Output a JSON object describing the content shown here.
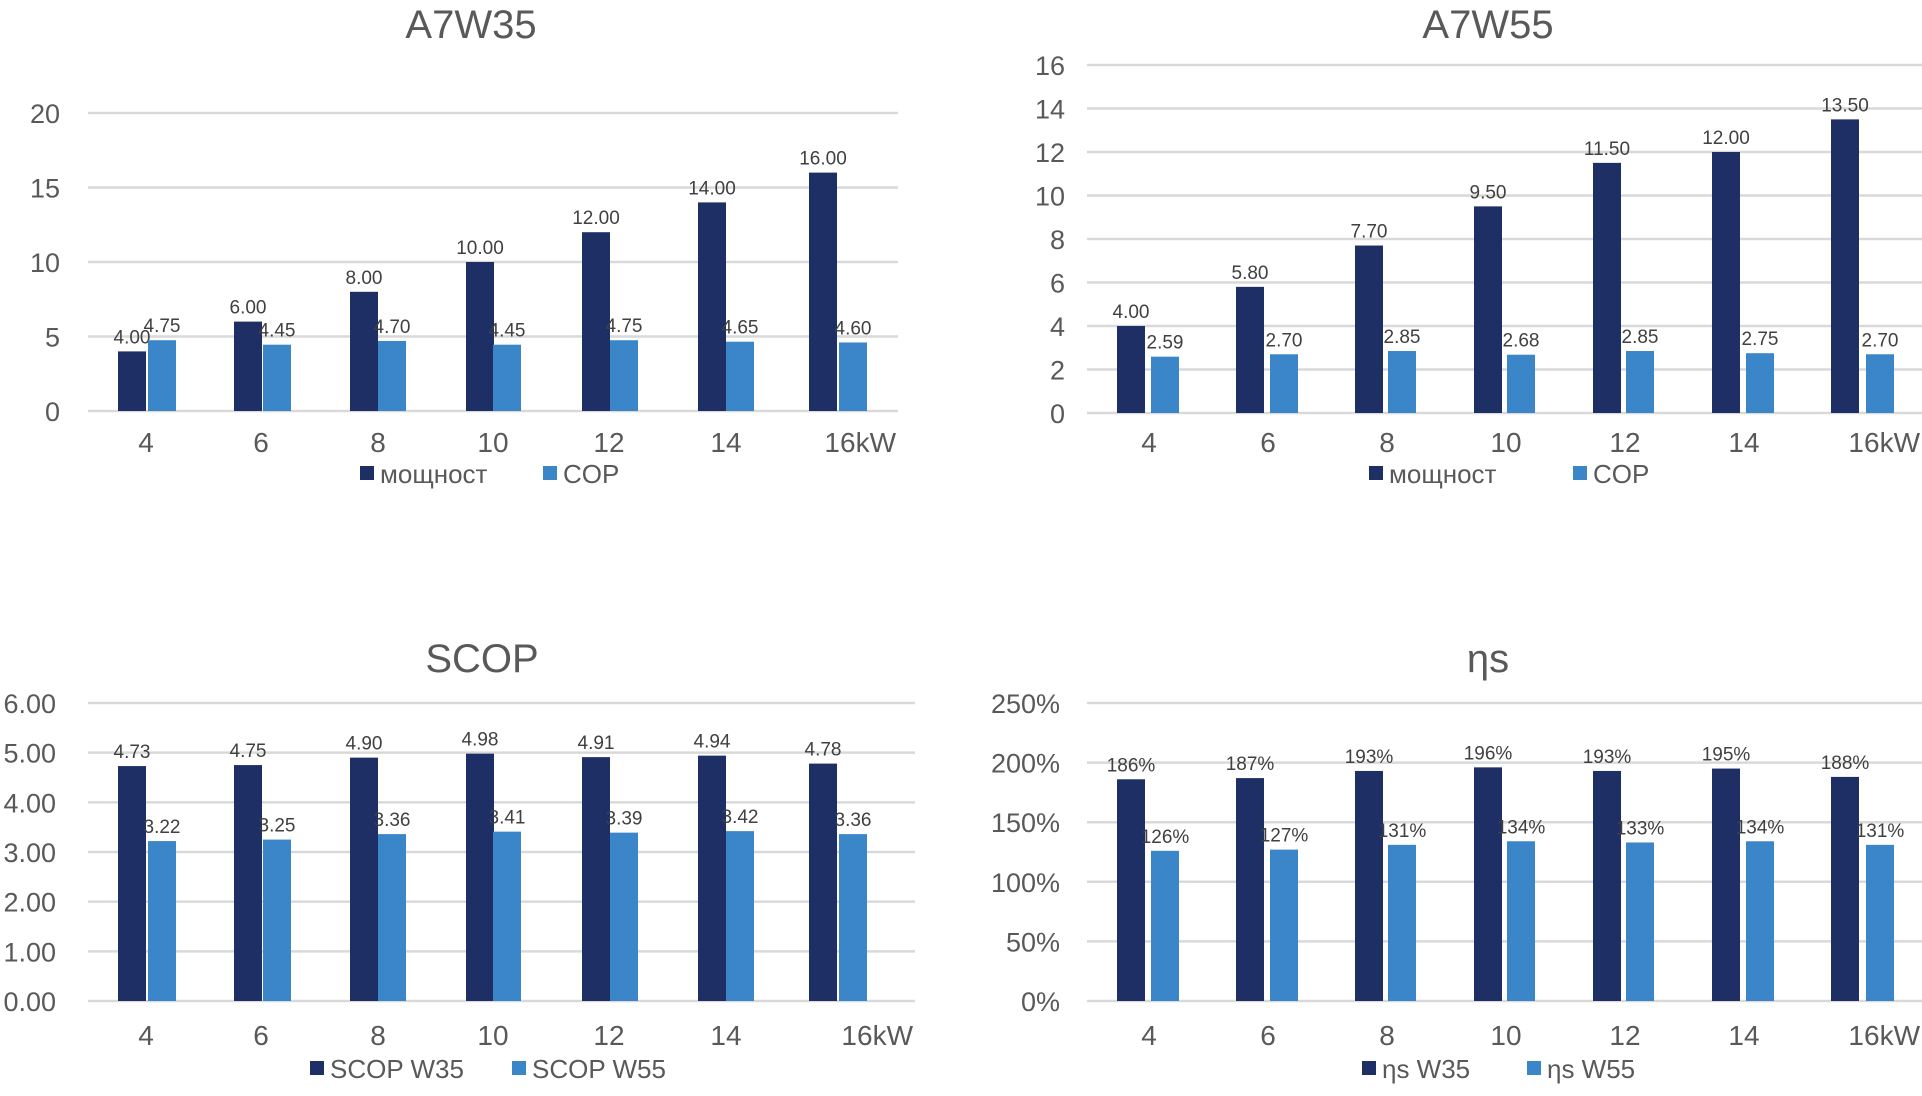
{
  "colors": {
    "series1": "#1e2f66",
    "series2": "#3a86c8",
    "grid": "#d9d9d9",
    "text": "#595959"
  },
  "chart_data": [
    {
      "id": "a7w35",
      "type": "bar",
      "title": "A7W35",
      "categories": [
        "4",
        "6",
        "8",
        "10",
        "12",
        "14",
        "16kW"
      ],
      "ylim": [
        0,
        20
      ],
      "yticks": [
        0,
        5,
        10,
        15,
        20
      ],
      "ytick_labels": [
        "0",
        "5",
        "10",
        "15",
        "20"
      ],
      "grid": true,
      "legend": "bottom",
      "series": [
        {
          "name": "мощност",
          "values": [
            4.0,
            6.0,
            8.0,
            10.0,
            12.0,
            14.0,
            16.0
          ],
          "labels": [
            "4.00",
            "6.00",
            "8.00",
            "10.00",
            "12.00",
            "14.00",
            "16.00"
          ]
        },
        {
          "name": "COP",
          "values": [
            4.75,
            4.45,
            4.7,
            4.45,
            4.75,
            4.65,
            4.6
          ],
          "labels": [
            "4.75",
            "4.45",
            "4.70",
            "4.45",
            "4.75",
            "4.65",
            "4.60"
          ]
        }
      ]
    },
    {
      "id": "a7w55",
      "type": "bar",
      "title": "A7W55",
      "categories": [
        "4",
        "6",
        "8",
        "10",
        "12",
        "14",
        "16kW"
      ],
      "ylim": [
        0,
        16
      ],
      "yticks": [
        0,
        2,
        4,
        6,
        8,
        10,
        12,
        14,
        16
      ],
      "ytick_labels": [
        "0",
        "2",
        "4",
        "6",
        "8",
        "10",
        "12",
        "14",
        "16"
      ],
      "grid": true,
      "legend": "bottom",
      "series": [
        {
          "name": "мощност",
          "values": [
            4.0,
            5.8,
            7.7,
            9.5,
            11.5,
            12.0,
            13.5
          ],
          "labels": [
            "4.00",
            "5.80",
            "7.70",
            "9.50",
            "11.50",
            "12.00",
            "13.50"
          ]
        },
        {
          "name": "COP",
          "values": [
            2.59,
            2.7,
            2.85,
            2.68,
            2.85,
            2.75,
            2.7
          ],
          "labels": [
            "2.59",
            "2.70",
            "2.85",
            "2.68",
            "2.85",
            "2.75",
            "2.70"
          ]
        }
      ]
    },
    {
      "id": "scop",
      "type": "bar",
      "title": "SCOP",
      "categories": [
        "4",
        "6",
        "8",
        "10",
        "12",
        "14",
        "16kW"
      ],
      "ylim": [
        0,
        6
      ],
      "yticks": [
        0,
        1,
        2,
        3,
        4,
        5,
        6
      ],
      "ytick_labels": [
        "0.00",
        "1.00",
        "2.00",
        "3.00",
        "4.00",
        "5.00",
        "6.00"
      ],
      "grid": true,
      "legend": "bottom",
      "series": [
        {
          "name": "SCOP W35",
          "values": [
            4.73,
            4.75,
            4.9,
            4.98,
            4.91,
            4.94,
            4.78
          ],
          "labels": [
            "4.73",
            "4.75",
            "4.90",
            "4.98",
            "4.91",
            "4.94",
            "4.78"
          ]
        },
        {
          "name": "SCOP W55",
          "values": [
            3.22,
            3.25,
            3.36,
            3.41,
            3.39,
            3.42,
            3.36
          ],
          "labels": [
            "3.22",
            "3.25",
            "3.36",
            "3.41",
            "3.39",
            "3.42",
            "3.36"
          ]
        }
      ]
    },
    {
      "id": "eta_s",
      "type": "bar",
      "title": "ηs",
      "categories": [
        "4",
        "6",
        "8",
        "10",
        "12",
        "14",
        "16kW"
      ],
      "ylim": [
        0,
        250
      ],
      "yticks": [
        0,
        50,
        100,
        150,
        200,
        250
      ],
      "ytick_labels": [
        "0%",
        "50%",
        "100%",
        "150%",
        "200%",
        "250%"
      ],
      "grid": true,
      "legend": "bottom",
      "series": [
        {
          "name": "ηs W35",
          "values": [
            186,
            187,
            193,
            196,
            193,
            195,
            188
          ],
          "labels": [
            "186%",
            "187%",
            "193%",
            "196%",
            "193%",
            "195%",
            "188%"
          ]
        },
        {
          "name": "ηs W55",
          "values": [
            126,
            127,
            131,
            134,
            133,
            134,
            131
          ],
          "labels": [
            "126%",
            "127%",
            "131%",
            "134%",
            "133%",
            "134%",
            "131%"
          ]
        }
      ]
    }
  ]
}
